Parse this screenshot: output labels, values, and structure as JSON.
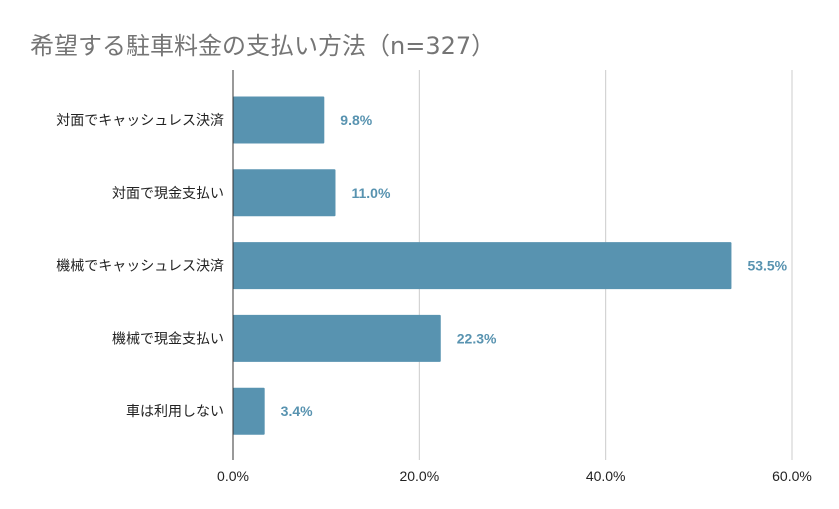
{
  "chart_data": {
    "type": "bar",
    "orientation": "horizontal",
    "title": "希望する駐車料金の支払い方法（n=327）",
    "xlabel": "",
    "ylabel": "",
    "categories": [
      "対面でキャッシュレス決済",
      "対面で現金支払い",
      "機械でキャッシュレス決済",
      "機械で現金支払い",
      "車は利用しない"
    ],
    "values": [
      9.8,
      11.0,
      53.5,
      22.3,
      3.4
    ],
    "data_labels": [
      "9.8%",
      "11.0%",
      "53.5%",
      "22.3%",
      "3.4%"
    ],
    "xlim": [
      0,
      60
    ],
    "x_ticks": [
      0,
      20,
      40,
      60
    ],
    "x_tick_labels": [
      "0.0%",
      "20.0%",
      "40.0%",
      "60.0%"
    ],
    "grid": "vertical",
    "legend": "none",
    "colors": {
      "bar": "#5893b0",
      "data_label": "#5893b0",
      "grid": "#cccccc",
      "axis": "#333333",
      "title": "#757575"
    }
  }
}
